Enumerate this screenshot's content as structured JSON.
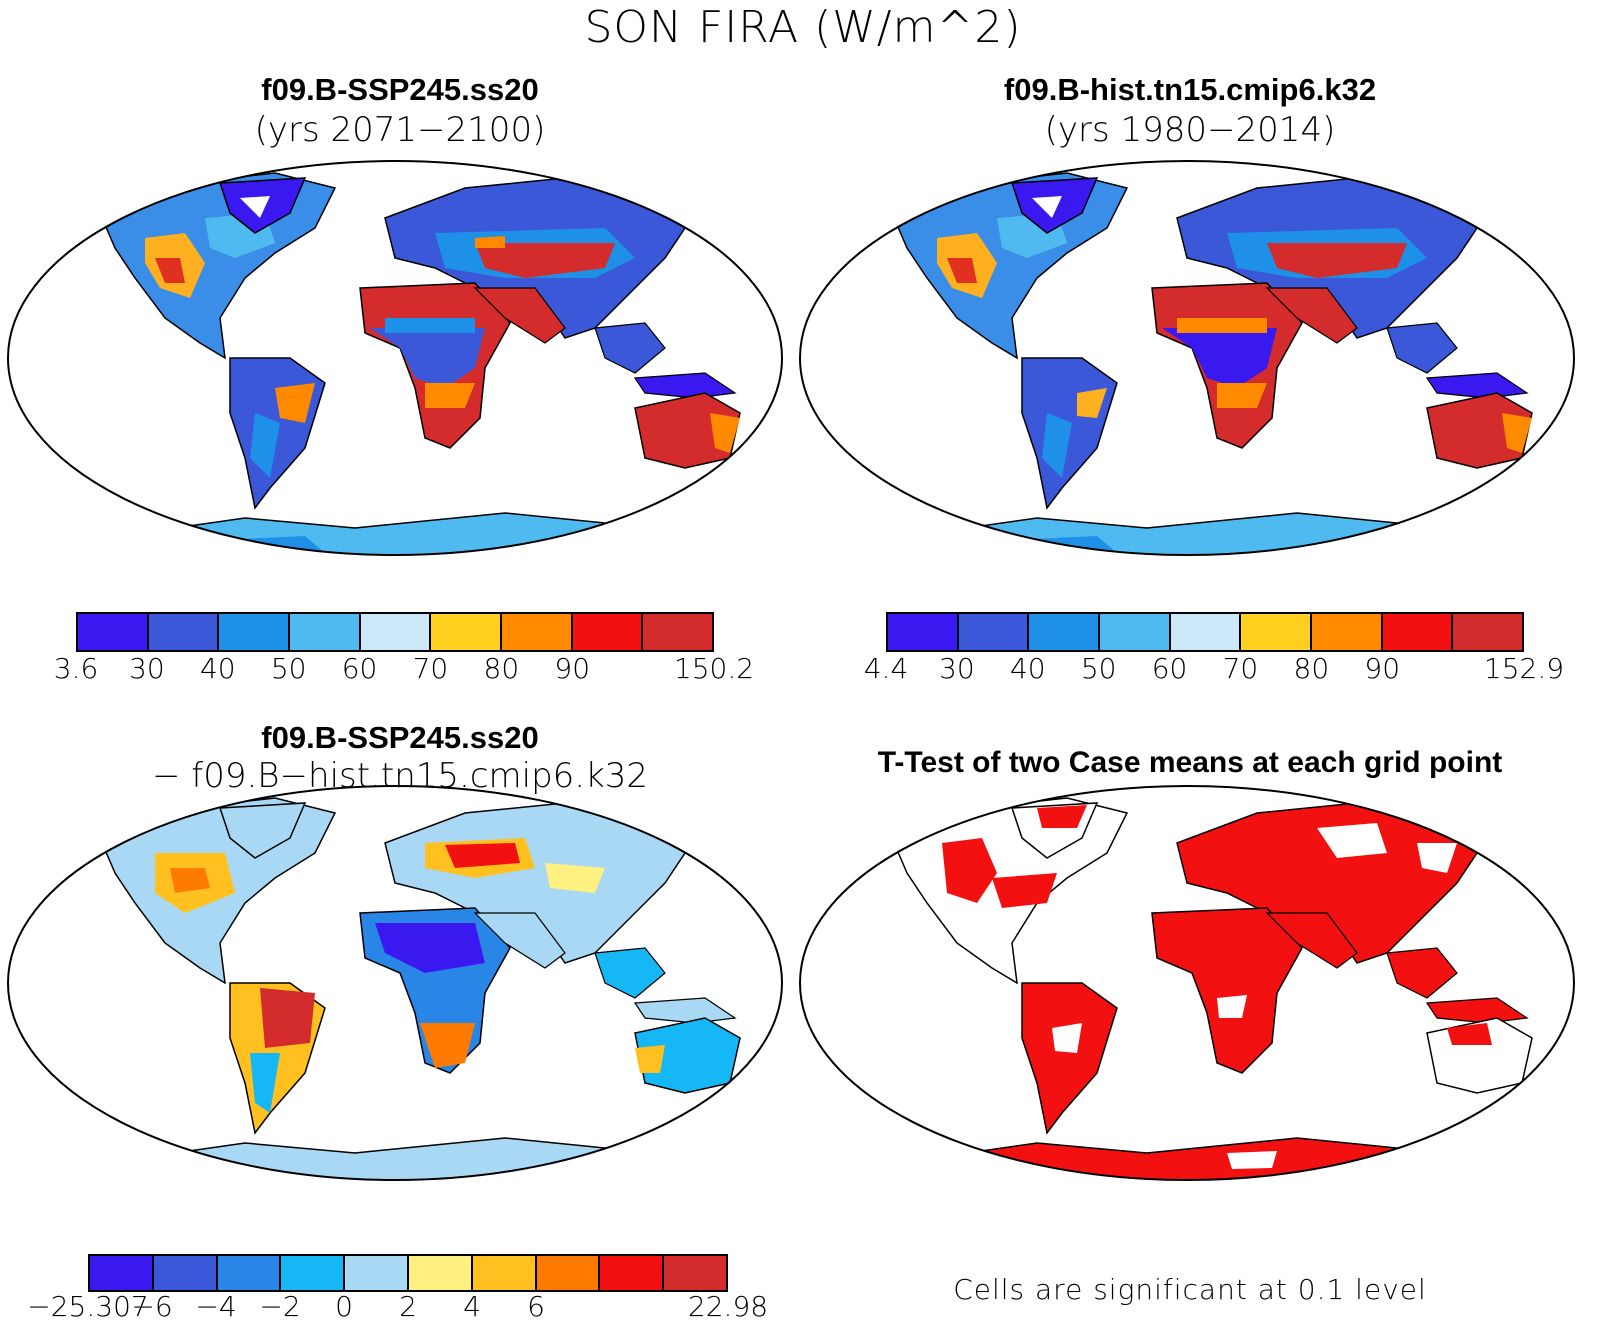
{
  "figure": {
    "title": "SON FIRA (W/m^2)"
  },
  "panels": [
    {
      "id": "top-left",
      "title": "f09.B-SSP245.ss20",
      "subtitle": "(yrs 2071−2100)"
    },
    {
      "id": "top-right",
      "title": "f09.B-hist.tn15.cmip6.k32",
      "subtitle": "(yrs 1980−2014)"
    },
    {
      "id": "bottom-left",
      "title": "f09.B-SSP245.ss20",
      "subtitle": "− f09.B−hist.tn15.cmip6.k32"
    },
    {
      "id": "bottom-right",
      "title": "T-Test of two Case means at each grid point",
      "note": "Cells are significant at 0.1 level"
    }
  ],
  "colorbars": {
    "case1": {
      "labels": [
        "3.6",
        "30",
        "40",
        "50",
        "60",
        "70",
        "80",
        "90",
        "150.2"
      ],
      "colors": [
        "#3a18f0",
        "#3b58d8",
        "#1e90e8",
        "#4fbaf0",
        "#cce8f8",
        "#ffd020",
        "#ff8a00",
        "#f21010",
        "#d42c2c"
      ]
    },
    "case2": {
      "labels": [
        "4.4",
        "30",
        "40",
        "50",
        "60",
        "70",
        "80",
        "90",
        "152.9"
      ],
      "colors": [
        "#3a18f0",
        "#3b58d8",
        "#1e90e8",
        "#4fbaf0",
        "#cce8f8",
        "#ffd020",
        "#ff8a00",
        "#f21010",
        "#d42c2c"
      ]
    },
    "diff": {
      "labels": [
        "−25.307",
        "−6",
        "−4",
        "−2",
        "0",
        "2",
        "4",
        "6",
        "22.98"
      ],
      "colors": [
        "#3a18f0",
        "#3b58d8",
        "#2a86e6",
        "#15b8f4",
        "#a8d8f4",
        "#fff080",
        "#ffc020",
        "#ff7a00",
        "#f21010",
        "#d42c2c"
      ]
    }
  }
}
